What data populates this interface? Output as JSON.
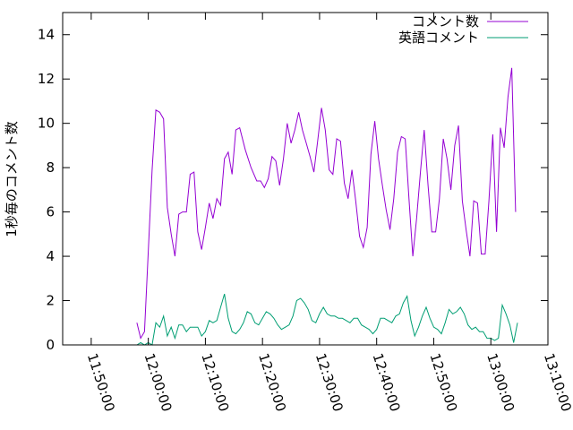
{
  "chart_data": {
    "type": "line",
    "title": "",
    "xlabel": "",
    "ylabel": "1秒毎のコメント数",
    "xlim": [
      "11:45:00",
      "13:10:00"
    ],
    "ylim": [
      0,
      15
    ],
    "x_ticks": [
      "11:50:00",
      "12:00:00",
      "12:10:00",
      "12:20:00",
      "12:30:00",
      "12:40:00",
      "12:50:00",
      "13:00:00",
      "13:10:00"
    ],
    "y_ticks": [
      "0",
      "2",
      "4",
      "6",
      "8",
      "10",
      "12",
      "14"
    ],
    "grid": false,
    "legend": "top-right",
    "series": [
      {
        "name": "コメント数",
        "color": "#9400d3",
        "points": [
          [
            "11:58:00",
            1.0
          ],
          [
            "11:58:40",
            0.3
          ],
          [
            "11:59:20",
            0.6
          ],
          [
            "12:00:00",
            4.2
          ],
          [
            "12:00:40",
            7.9
          ],
          [
            "12:01:20",
            10.6
          ],
          [
            "12:02:00",
            10.5
          ],
          [
            "12:02:40",
            10.2
          ],
          [
            "12:03:20",
            6.2
          ],
          [
            "12:04:00",
            5.0
          ],
          [
            "12:04:40",
            4.0
          ],
          [
            "12:05:20",
            5.9
          ],
          [
            "12:06:00",
            6.0
          ],
          [
            "12:06:40",
            6.0
          ],
          [
            "12:07:20",
            7.7
          ],
          [
            "12:08:00",
            7.8
          ],
          [
            "12:08:40",
            5.1
          ],
          [
            "12:09:20",
            4.3
          ],
          [
            "12:10:00",
            5.3
          ],
          [
            "12:10:40",
            6.4
          ],
          [
            "12:11:20",
            5.7
          ],
          [
            "12:12:00",
            6.6
          ],
          [
            "12:12:40",
            6.3
          ],
          [
            "12:13:20",
            8.4
          ],
          [
            "12:14:00",
            8.7
          ],
          [
            "12:14:40",
            7.7
          ],
          [
            "12:15:20",
            9.7
          ],
          [
            "12:16:00",
            9.8
          ],
          [
            "12:17:00",
            8.8
          ],
          [
            "12:18:00",
            8.0
          ],
          [
            "12:19:00",
            7.4
          ],
          [
            "12:19:40",
            7.4
          ],
          [
            "12:20:20",
            7.1
          ],
          [
            "12:21:00",
            7.5
          ],
          [
            "12:21:40",
            8.5
          ],
          [
            "12:22:20",
            8.3
          ],
          [
            "12:23:00",
            7.2
          ],
          [
            "12:23:40",
            8.4
          ],
          [
            "12:24:20",
            10.0
          ],
          [
            "12:25:00",
            9.1
          ],
          [
            "12:25:40",
            9.7
          ],
          [
            "12:26:20",
            10.5
          ],
          [
            "12:27:00",
            9.7
          ],
          [
            "12:27:40",
            9.1
          ],
          [
            "12:28:20",
            8.5
          ],
          [
            "12:29:00",
            7.8
          ],
          [
            "12:29:40",
            9.2
          ],
          [
            "12:30:20",
            10.7
          ],
          [
            "12:31:00",
            9.7
          ],
          [
            "12:31:40",
            7.9
          ],
          [
            "12:32:20",
            7.7
          ],
          [
            "12:33:00",
            9.3
          ],
          [
            "12:33:40",
            9.2
          ],
          [
            "12:34:20",
            7.3
          ],
          [
            "12:35:00",
            6.6
          ],
          [
            "12:35:40",
            7.9
          ],
          [
            "12:36:20",
            6.5
          ],
          [
            "12:37:00",
            4.9
          ],
          [
            "12:37:40",
            4.4
          ],
          [
            "12:38:20",
            5.3
          ],
          [
            "12:39:00",
            8.6
          ],
          [
            "12:39:40",
            10.1
          ],
          [
            "12:40:20",
            8.4
          ],
          [
            "12:41:00",
            7.2
          ],
          [
            "12:41:40",
            6.1
          ],
          [
            "12:42:20",
            5.2
          ],
          [
            "12:43:00",
            6.6
          ],
          [
            "12:43:40",
            8.7
          ],
          [
            "12:44:20",
            9.4
          ],
          [
            "12:45:00",
            9.3
          ],
          [
            "12:45:40",
            6.6
          ],
          [
            "12:46:20",
            4.0
          ],
          [
            "12:47:00",
            5.7
          ],
          [
            "12:47:40",
            7.8
          ],
          [
            "12:48:20",
            9.7
          ],
          [
            "12:49:00",
            7.2
          ],
          [
            "12:49:40",
            5.1
          ],
          [
            "12:50:20",
            5.1
          ],
          [
            "12:51:00",
            6.6
          ],
          [
            "12:51:40",
            9.3
          ],
          [
            "12:52:20",
            8.4
          ],
          [
            "12:53:00",
            7.0
          ],
          [
            "12:53:40",
            9.0
          ],
          [
            "12:54:20",
            9.9
          ],
          [
            "12:55:00",
            6.5
          ],
          [
            "12:55:40",
            5.2
          ],
          [
            "12:56:20",
            4.0
          ],
          [
            "12:57:00",
            6.5
          ],
          [
            "12:57:40",
            6.4
          ],
          [
            "12:58:20",
            4.1
          ],
          [
            "12:59:00",
            4.1
          ],
          [
            "12:59:40",
            6.5
          ],
          [
            "13:00:20",
            9.5
          ],
          [
            "13:01:00",
            5.1
          ],
          [
            "13:01:40",
            9.8
          ],
          [
            "13:02:20",
            8.9
          ],
          [
            "13:03:00",
            11.2
          ],
          [
            "13:03:40",
            12.5
          ],
          [
            "13:04:20",
            6.0
          ]
        ]
      },
      {
        "name": "英語コメント",
        "color": "#009e73",
        "points": [
          [
            "11:58:00",
            0.0
          ],
          [
            "11:58:40",
            0.1
          ],
          [
            "11:59:20",
            0.0
          ],
          [
            "12:00:00",
            0.1
          ],
          [
            "12:00:40",
            0.0
          ],
          [
            "12:01:20",
            1.0
          ],
          [
            "12:02:00",
            0.8
          ],
          [
            "12:02:40",
            1.3
          ],
          [
            "12:03:20",
            0.4
          ],
          [
            "12:04:00",
            0.8
          ],
          [
            "12:04:40",
            0.3
          ],
          [
            "12:05:20",
            0.9
          ],
          [
            "12:06:00",
            0.9
          ],
          [
            "12:06:40",
            0.6
          ],
          [
            "12:07:20",
            0.8
          ],
          [
            "12:08:00",
            0.8
          ],
          [
            "12:08:40",
            0.8
          ],
          [
            "12:09:20",
            0.4
          ],
          [
            "12:10:00",
            0.6
          ],
          [
            "12:10:40",
            1.1
          ],
          [
            "12:11:20",
            1.0
          ],
          [
            "12:12:00",
            1.1
          ],
          [
            "12:12:40",
            1.7
          ],
          [
            "12:13:20",
            2.3
          ],
          [
            "12:14:00",
            1.2
          ],
          [
            "12:14:40",
            0.6
          ],
          [
            "12:15:20",
            0.5
          ],
          [
            "12:16:00",
            0.7
          ],
          [
            "12:16:40",
            1.0
          ],
          [
            "12:17:20",
            1.5
          ],
          [
            "12:18:00",
            1.4
          ],
          [
            "12:18:40",
            1.0
          ],
          [
            "12:19:20",
            0.9
          ],
          [
            "12:20:00",
            1.2
          ],
          [
            "12:20:40",
            1.5
          ],
          [
            "12:21:20",
            1.4
          ],
          [
            "12:22:00",
            1.2
          ],
          [
            "12:22:40",
            0.9
          ],
          [
            "12:23:20",
            0.7
          ],
          [
            "12:24:00",
            0.8
          ],
          [
            "12:24:40",
            0.9
          ],
          [
            "12:25:20",
            1.3
          ],
          [
            "12:26:00",
            2.0
          ],
          [
            "12:26:40",
            2.1
          ],
          [
            "12:27:20",
            1.9
          ],
          [
            "12:28:00",
            1.6
          ],
          [
            "12:28:40",
            1.1
          ],
          [
            "12:29:20",
            1.0
          ],
          [
            "12:30:00",
            1.4
          ],
          [
            "12:30:40",
            1.7
          ],
          [
            "12:31:20",
            1.4
          ],
          [
            "12:32:00",
            1.3
          ],
          [
            "12:32:40",
            1.3
          ],
          [
            "12:33:20",
            1.2
          ],
          [
            "12:34:00",
            1.2
          ],
          [
            "12:34:40",
            1.1
          ],
          [
            "12:35:20",
            1.0
          ],
          [
            "12:36:00",
            1.2
          ],
          [
            "12:36:40",
            1.2
          ],
          [
            "12:37:20",
            0.9
          ],
          [
            "12:38:00",
            0.8
          ],
          [
            "12:38:40",
            0.7
          ],
          [
            "12:39:20",
            0.5
          ],
          [
            "12:40:00",
            0.7
          ],
          [
            "12:40:40",
            1.2
          ],
          [
            "12:41:20",
            1.2
          ],
          [
            "12:42:00",
            1.1
          ],
          [
            "12:42:40",
            1.0
          ],
          [
            "12:43:20",
            1.3
          ],
          [
            "12:44:00",
            1.4
          ],
          [
            "12:44:40",
            1.9
          ],
          [
            "12:45:20",
            2.2
          ],
          [
            "12:46:00",
            1.1
          ],
          [
            "12:46:40",
            0.4
          ],
          [
            "12:47:20",
            0.8
          ],
          [
            "12:48:00",
            1.3
          ],
          [
            "12:48:40",
            1.7
          ],
          [
            "12:49:20",
            1.2
          ],
          [
            "12:50:00",
            0.8
          ],
          [
            "12:50:40",
            0.7
          ],
          [
            "12:51:20",
            0.5
          ],
          [
            "12:52:00",
            1.0
          ],
          [
            "12:52:40",
            1.6
          ],
          [
            "12:53:20",
            1.4
          ],
          [
            "12:54:00",
            1.5
          ],
          [
            "12:54:40",
            1.7
          ],
          [
            "12:55:20",
            1.4
          ],
          [
            "12:56:00",
            0.9
          ],
          [
            "12:56:40",
            0.7
          ],
          [
            "12:57:20",
            0.8
          ],
          [
            "12:58:00",
            0.6
          ],
          [
            "12:58:40",
            0.6
          ],
          [
            "12:59:20",
            0.3
          ],
          [
            "13:00:00",
            0.3
          ],
          [
            "13:00:40",
            0.2
          ],
          [
            "13:01:20",
            0.3
          ],
          [
            "13:02:00",
            1.8
          ],
          [
            "13:02:40",
            1.4
          ],
          [
            "13:03:20",
            0.9
          ],
          [
            "13:04:00",
            0.1
          ],
          [
            "13:04:40",
            1.0
          ]
        ]
      }
    ]
  }
}
